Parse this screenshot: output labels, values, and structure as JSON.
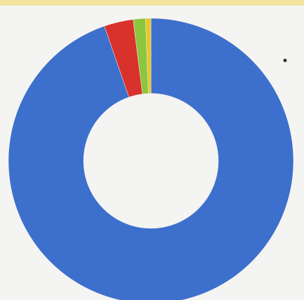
{
  "chart_data": {
    "type": "donut",
    "values": [
      94.7,
      3.3,
      1.4,
      0.6
    ],
    "colors": [
      "#3d6fcc",
      "#d9312b",
      "#8cc63f",
      "#e8c62a"
    ]
  }
}
